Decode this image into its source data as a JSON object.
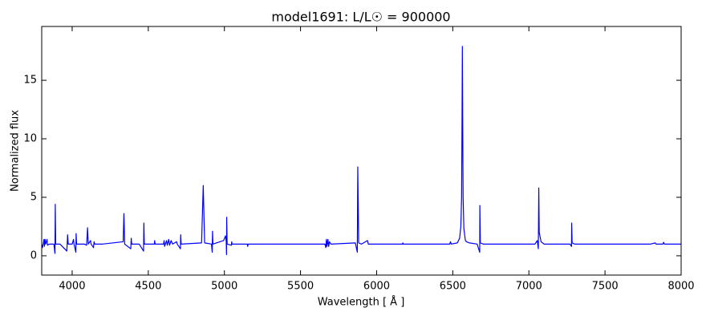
{
  "chart_data": {
    "type": "line",
    "title": "model1691: L/L☉ = 900000",
    "xlabel": "Wavelength [ Å ]",
    "ylabel": "Normalized flux",
    "color": "#0000ff",
    "xlim": [
      3800,
      8000
    ],
    "xticks": [
      4000,
      4500,
      5000,
      5500,
      6000,
      6500,
      7000,
      7500,
      8000
    ],
    "ylim": [
      -1.65,
      19.6
    ],
    "yticks": [
      0,
      5,
      10,
      15
    ],
    "x": [
      3800,
      3805,
      3810,
      3815,
      3818,
      3822,
      3826,
      3835,
      3838,
      3850,
      3880,
      3887,
      3889,
      3892,
      3920,
      3965,
      3970,
      3974,
      4000,
      4009,
      4012,
      4024,
      4026,
      4029,
      4080,
      4095,
      4101,
      4106,
      4121,
      4124,
      4140,
      4144,
      4148,
      4200,
      4335,
      4340,
      4345,
      4385,
      4388,
      4391,
      4440,
      4469,
      4471,
      4474,
      4540,
      4542,
      4545,
      4600,
      4604,
      4607,
      4620,
      4625,
      4634,
      4640,
      4650,
      4660,
      4686,
      4690,
      4711,
      4713,
      4716,
      4850,
      4861,
      4870,
      4915,
      4920,
      4922,
      4925,
      4995,
      5007,
      5012,
      5014,
      5015,
      5018,
      5046,
      5048,
      5050,
      5150,
      5153,
      5156,
      5660,
      5666,
      5670,
      5674,
      5680,
      5685,
      5690,
      5700,
      5860,
      5873,
      5876,
      5882,
      5900,
      5940,
      5945,
      6170,
      6172,
      6175,
      6480,
      6485,
      6490,
      6530,
      6545,
      6553,
      6558,
      6561,
      6563,
      6565,
      6568,
      6573,
      6583,
      6590,
      6610,
      6660,
      6677,
      6678,
      6681,
      6700,
      7040,
      7055,
      7062,
      7065,
      7068,
      7080,
      7100,
      7270,
      7280,
      7281,
      7284,
      7300,
      7800,
      7830,
      7835,
      7880,
      7885,
      7890,
      8000
    ],
    "values": [
      1.0,
      0.7,
      1.0,
      1.4,
      0.8,
      1.4,
      1.0,
      1.4,
      0.9,
      1.0,
      1.0,
      0.2,
      4.4,
      1.0,
      1.0,
      0.4,
      1.8,
      1.0,
      1.0,
      1.4,
      1.0,
      0.3,
      1.9,
      1.0,
      1.0,
      0.9,
      2.4,
      1.0,
      1.3,
      1.0,
      0.7,
      1.2,
      1.0,
      1.0,
      1.2,
      3.6,
      1.0,
      0.6,
      1.5,
      1.0,
      1.0,
      0.4,
      2.8,
      1.0,
      1.0,
      1.3,
      1.0,
      1.0,
      1.3,
      0.8,
      1.3,
      0.9,
      1.4,
      0.9,
      1.3,
      1.0,
      1.2,
      1.0,
      0.6,
      1.8,
      1.0,
      1.1,
      6.0,
      1.1,
      1.0,
      0.3,
      2.1,
      1.0,
      1.3,
      1.7,
      1.2,
      0.1,
      3.3,
      1.0,
      0.9,
      1.2,
      1.0,
      1.0,
      0.8,
      1.0,
      1.0,
      0.7,
      1.4,
      0.8,
      1.4,
      0.8,
      1.2,
      1.0,
      1.1,
      0.3,
      7.6,
      1.1,
      1.0,
      1.3,
      1.0,
      1.0,
      1.1,
      1.0,
      1.0,
      1.2,
      1.0,
      1.1,
      1.5,
      2.5,
      5,
      12,
      17.9,
      12,
      5,
      2.3,
      1.3,
      1.2,
      1.1,
      1.0,
      0.3,
      4.3,
      1.1,
      1.0,
      1.0,
      1.3,
      0.6,
      5.8,
      2.0,
      1.2,
      1.0,
      1.0,
      0.8,
      2.8,
      1.1,
      1.0,
      1.0,
      1.1,
      1.0,
      1.0,
      1.15,
      1.0,
      1.0
    ]
  }
}
